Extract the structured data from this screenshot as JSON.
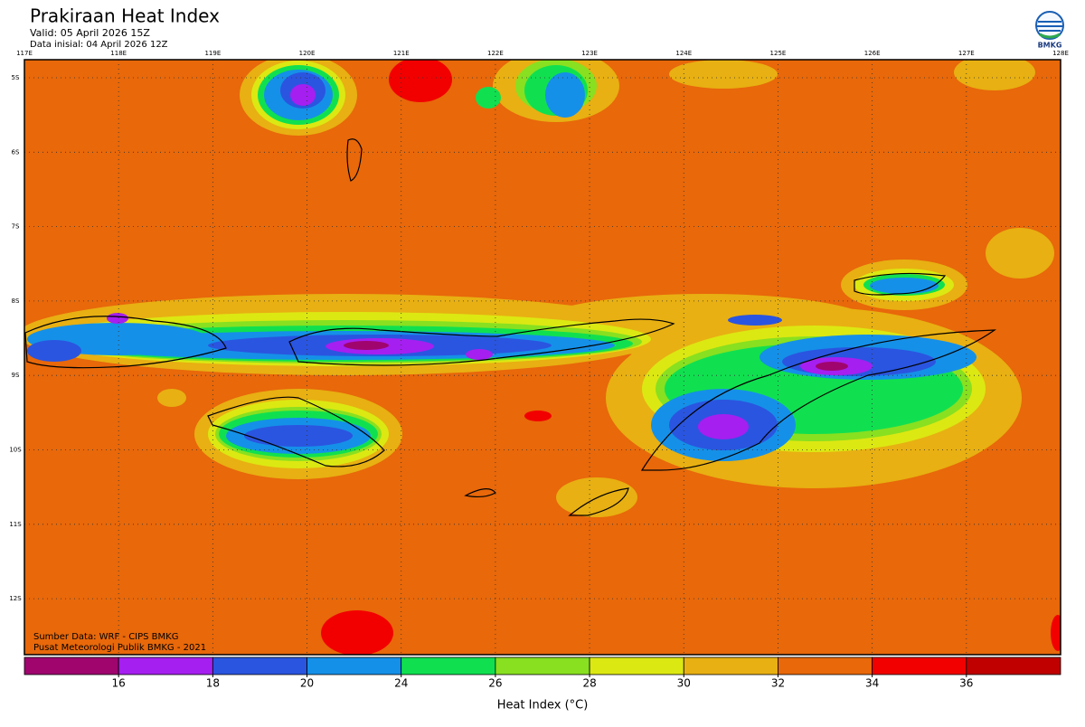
{
  "header": {
    "title": "Prakiraan Heat Index",
    "valid": "Valid: 05 April 2026 15Z",
    "initial": "Data inisial: 04 April 2026 12Z",
    "logo": "BMKG"
  },
  "map": {
    "longitudes": [
      "117E",
      "118E",
      "119E",
      "120E",
      "121E",
      "122E",
      "123E",
      "124E",
      "125E",
      "126E",
      "127E",
      "128E"
    ],
    "latitudes": [
      "5S",
      "6S",
      "7S",
      "8S",
      "9S",
      "10S",
      "11S",
      "12S"
    ],
    "source": "Sumber Data: WRF - CIPS BMKG",
    "credit": "Pusat Meteorologi Publik BMKG - 2021"
  },
  "colorbar": {
    "label": "Heat Index (°C)",
    "ticks": [
      16,
      18,
      20,
      24,
      26,
      28,
      30,
      32,
      34,
      36
    ],
    "colors": [
      "#a0056e",
      "#a51ff0",
      "#2a55e0",
      "#1590e8",
      "#10e050",
      "#88e020",
      "#dce812",
      "#e8b012",
      "#e8680a",
      "#f20000",
      "#c00000"
    ]
  }
}
